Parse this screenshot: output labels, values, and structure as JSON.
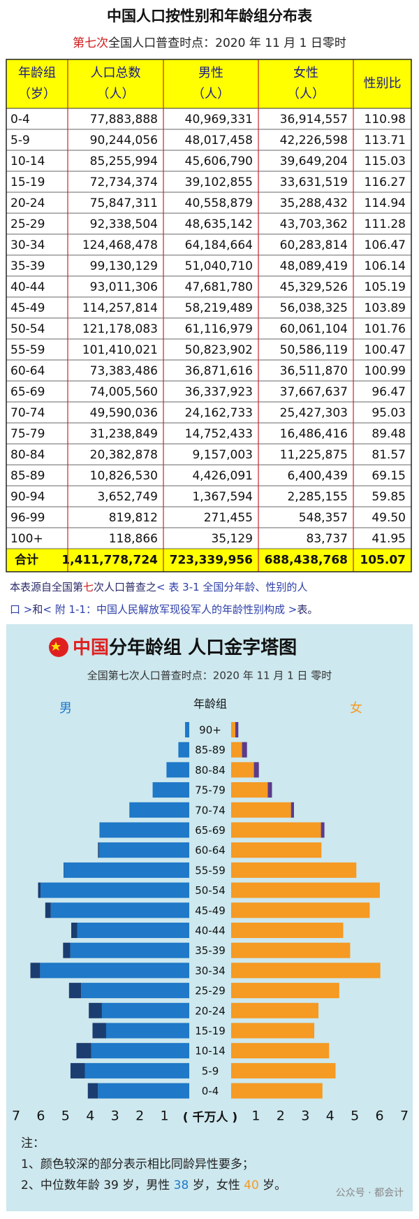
{
  "header": {
    "title": "中国人口按性别和年龄组分布表",
    "subtitle": [
      "第七次",
      "全国人口普查时点：2020 年 11 月 1 日零时"
    ]
  },
  "table": {
    "columns": [
      [
        "年龄组",
        "（岁）"
      ],
      [
        "人口总数",
        "（人）"
      ],
      [
        "男性",
        "（人）"
      ],
      [
        "女性",
        "（人）"
      ],
      [
        "性别比"
      ]
    ],
    "rows": [
      [
        "0-4",
        "77,883,888",
        "40,969,331",
        "36,914,557",
        "110.98"
      ],
      [
        "5-9",
        "90,244,056",
        "48,017,458",
        "42,226,598",
        "113.71"
      ],
      [
        "10-14",
        "85,255,994",
        "45,606,790",
        "39,649,204",
        "115.03"
      ],
      [
        "15-19",
        "72,734,374",
        "39,102,855",
        "33,631,519",
        "116.27"
      ],
      [
        "20-24",
        "75,847,311",
        "40,558,879",
        "35,288,432",
        "114.94"
      ],
      [
        "25-29",
        "92,338,504",
        "48,635,142",
        "43,703,362",
        "111.28"
      ],
      [
        "30-34",
        "124,468,478",
        "64,184,664",
        "60,283,814",
        "106.47"
      ],
      [
        "35-39",
        "99,130,129",
        "51,040,710",
        "48,089,419",
        "106.14"
      ],
      [
        "40-44",
        "93,011,306",
        "47,681,780",
        "45,329,526",
        "105.19"
      ],
      [
        "45-49",
        "114,257,814",
        "58,219,489",
        "56,038,325",
        "103.89"
      ],
      [
        "50-54",
        "121,178,083",
        "61,116,979",
        "60,061,104",
        "101.76"
      ],
      [
        "55-59",
        "101,410,021",
        "50,823,902",
        "50,586,119",
        "100.47"
      ],
      [
        "60-64",
        "73,383,486",
        "36,871,616",
        "36,511,870",
        "100.99"
      ],
      [
        "65-69",
        "74,005,560",
        "36,337,923",
        "37,667,637",
        "96.47"
      ],
      [
        "70-74",
        "49,590,036",
        "24,162,733",
        "25,427,303",
        "95.03"
      ],
      [
        "75-79",
        "31,238,849",
        "14,752,433",
        "16,486,416",
        "89.48"
      ],
      [
        "80-84",
        "20,382,878",
        "9,157,003",
        "11,225,875",
        "81.57"
      ],
      [
        "85-89",
        "10,826,530",
        "4,426,091",
        "6,400,439",
        "69.15"
      ],
      [
        "90-94",
        "3,652,749",
        "1,367,594",
        "2,285,155",
        "59.85"
      ],
      [
        "96-99",
        "819,812",
        "271,455",
        "548,357",
        "49.50"
      ],
      [
        "100+",
        "118,866",
        "35,129",
        "83,737",
        "41.95"
      ]
    ],
    "total": [
      "合计",
      "1,411,778,724",
      "723,339,956",
      "688,438,768",
      "105.07"
    ]
  },
  "source": [
    [
      "本表源自全国第",
      "七",
      "次人口普查之",
      "< 表 3-1 全国分年龄、性别的人"
    ],
    [
      "口 >",
      "和",
      "< 附 1-1：中国人民解放军现役军人的年龄性别构成 >",
      "表。"
    ]
  ],
  "chart_data": {
    "type": "pyramid",
    "title": [
      "中国",
      "分年龄组 人口金字塔图"
    ],
    "subtitle": "全国第七次人口普查时点：2020 年 11 月 1 日 零时",
    "category_label": "年龄组",
    "x_label": "( 千万人 )",
    "categories": [
      "90+",
      "85-89",
      "80-84",
      "75-79",
      "70-74",
      "65-69",
      "60-64",
      "55-59",
      "50-54",
      "45-49",
      "40-44",
      "35-39",
      "30-34",
      "25-29",
      "20-24",
      "15-19",
      "10-14",
      "5-9",
      "0-4"
    ],
    "series": [
      {
        "name": "男",
        "color": "#1f78c8",
        "dark_color": "#1b3d70",
        "values": [
          0.17,
          0.44,
          0.92,
          1.48,
          2.42,
          3.63,
          3.69,
          5.08,
          6.11,
          5.82,
          4.77,
          5.1,
          6.42,
          4.86,
          4.06,
          3.91,
          4.56,
          4.8,
          4.1
        ]
      },
      {
        "name": "女",
        "color": "#f59a23",
        "dark_color": "#5b3b8c",
        "values": [
          0.29,
          0.64,
          1.12,
          1.65,
          2.54,
          3.77,
          3.65,
          5.06,
          6.01,
          5.6,
          4.53,
          4.81,
          6.03,
          4.37,
          3.53,
          3.36,
          3.96,
          4.22,
          3.69
        ]
      }
    ],
    "xlim": [
      0,
      7
    ],
    "xticks": [
      1,
      2,
      3,
      4,
      5,
      6,
      7
    ]
  },
  "notes": [
    [
      "注："
    ],
    [
      "1、颜色较深的部分表示相比同龄异性要多；"
    ],
    [
      "2、中位数年龄 39 岁，男性 ",
      "38",
      " 岁，女性 ",
      "40",
      " 岁。"
    ]
  ],
  "watermark": "公众号 · 都会计"
}
